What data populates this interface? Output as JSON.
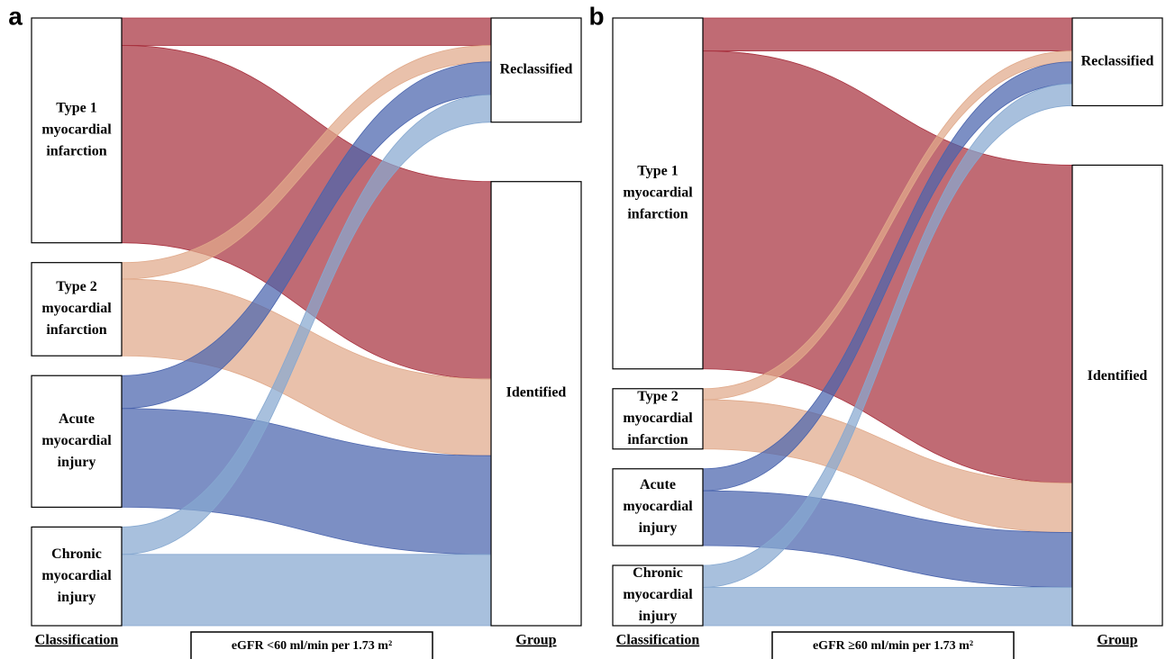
{
  "chart_data": [
    {
      "type": "sankey",
      "panel": "a",
      "left_title": "Classification",
      "right_title": "Group",
      "caption": "eGFR <60 ml/min per 1.73 m²",
      "right_nodes": [
        {
          "label": [
            "Reclassified"
          ]
        },
        {
          "label": [
            "Identified"
          ]
        }
      ],
      "left_nodes": [
        {
          "label": [
            "Type 1",
            "myocardial",
            "infarction"
          ],
          "color": "#a8323f",
          "values": [
            5,
            36
          ]
        },
        {
          "label": [
            "Type 2",
            "myocardial",
            "infarction"
          ],
          "color": "#e0a98a",
          "values": [
            3,
            14
          ]
        },
        {
          "label": [
            "Acute",
            "myocardial",
            "injury"
          ],
          "color": "#4a64ad",
          "values": [
            6,
            18
          ]
        },
        {
          "label": [
            "Chronic",
            "myocardial",
            "injury"
          ],
          "color": "#86a8d0",
          "values": [
            5,
            13
          ]
        }
      ]
    },
    {
      "type": "sankey",
      "panel": "b",
      "left_title": "Classification",
      "right_title": "Group",
      "caption": "eGFR ≥60 ml/min per 1.73 m²",
      "right_nodes": [
        {
          "label": [
            "Reclassified"
          ]
        },
        {
          "label": [
            "Identified"
          ]
        }
      ],
      "left_nodes": [
        {
          "label": [
            "Type 1",
            "myocardial",
            "infarction"
          ],
          "color": "#a8323f",
          "values": [
            6,
            58
          ]
        },
        {
          "label": [
            "Type 2",
            "myocardial",
            "infarction"
          ],
          "color": "#e0a98a",
          "values": [
            2,
            9
          ]
        },
        {
          "label": [
            "Acute",
            "myocardial",
            "injury"
          ],
          "color": "#4a64ad",
          "values": [
            4,
            10
          ]
        },
        {
          "label": [
            "Chronic",
            "myocardial",
            "injury"
          ],
          "color": "#86a8d0",
          "values": [
            4,
            7
          ]
        }
      ]
    }
  ]
}
